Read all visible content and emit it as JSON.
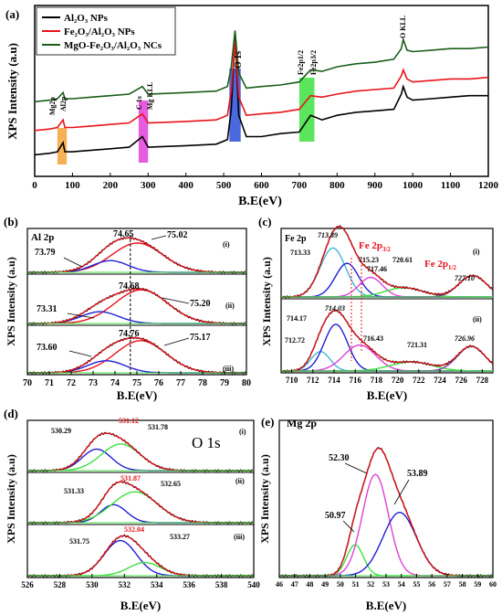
{
  "chart_data": [
    {
      "id": "a",
      "type": "line",
      "panel_label": "(a)",
      "xlabel": "B.E(eV)",
      "ylabel": "XPS Intensity (a.u)",
      "xlim": [
        0,
        1200
      ],
      "xticks": [
        0,
        100,
        200,
        300,
        400,
        500,
        600,
        700,
        800,
        900,
        1000,
        1100,
        1200
      ],
      "grid": false,
      "legend_position": "top-left",
      "legend_entries": [
        {
          "label": "Al₂O₃ NPs",
          "color": "#000000"
        },
        {
          "label": "Fe₂O₃/Al₂O₃ NPs",
          "color": "#e8131b"
        },
        {
          "label": "MgO-Fe₂O₃/Al₂O₃ NCs",
          "color": "#1a5e1a"
        }
      ],
      "series": [
        {
          "name": "Al₂O₃ NPs",
          "color": "#000000",
          "x": [
            0,
            40,
            60,
            75,
            80,
            100,
            150,
            200,
            250,
            285,
            300,
            400,
            480,
            510,
            520,
            530,
            540,
            560,
            600,
            650,
            700,
            730,
            760,
            800,
            850,
            900,
            950,
            970,
            975,
            985,
            1000,
            1050,
            1100,
            1150,
            1200
          ],
          "y": [
            0.1,
            0.11,
            0.12,
            0.18,
            0.12,
            0.12,
            0.13,
            0.14,
            0.15,
            0.22,
            0.15,
            0.16,
            0.17,
            0.2,
            0.4,
            0.88,
            0.36,
            0.22,
            0.22,
            0.24,
            0.25,
            0.36,
            0.33,
            0.36,
            0.38,
            0.39,
            0.4,
            0.5,
            0.55,
            0.48,
            0.46,
            0.47,
            0.48,
            0.49,
            0.49
          ]
        },
        {
          "name": "Fe₂O₃/Al₂O₃ NPs",
          "color": "#e8131b",
          "x": [
            0,
            40,
            60,
            75,
            80,
            100,
            150,
            200,
            250,
            285,
            300,
            400,
            480,
            510,
            520,
            530,
            540,
            560,
            600,
            650,
            700,
            730,
            760,
            800,
            850,
            900,
            950,
            970,
            975,
            985,
            1000,
            1050,
            1100,
            1150,
            1200
          ],
          "y": [
            0.26,
            0.27,
            0.28,
            0.33,
            0.28,
            0.28,
            0.29,
            0.3,
            0.31,
            0.37,
            0.31,
            0.32,
            0.33,
            0.36,
            0.52,
            0.85,
            0.48,
            0.36,
            0.37,
            0.38,
            0.4,
            0.49,
            0.48,
            0.5,
            0.52,
            0.53,
            0.54,
            0.62,
            0.66,
            0.6,
            0.58,
            0.59,
            0.6,
            0.6,
            0.61
          ]
        },
        {
          "name": "MgO-Fe₂O₃/Al₂O₃ NCs",
          "color": "#1a5e1a",
          "x": [
            0,
            40,
            60,
            75,
            80,
            100,
            150,
            200,
            250,
            285,
            300,
            400,
            480,
            510,
            520,
            530,
            540,
            560,
            600,
            650,
            700,
            730,
            760,
            800,
            850,
            900,
            950,
            970,
            975,
            985,
            1000,
            1050,
            1100,
            1150,
            1200
          ],
          "y": [
            0.45,
            0.46,
            0.47,
            0.51,
            0.47,
            0.47,
            0.48,
            0.49,
            0.5,
            0.55,
            0.5,
            0.51,
            0.52,
            0.55,
            0.68,
            0.92,
            0.64,
            0.54,
            0.55,
            0.56,
            0.58,
            0.66,
            0.65,
            0.68,
            0.7,
            0.71,
            0.73,
            0.8,
            0.86,
            0.79,
            0.78,
            0.79,
            0.8,
            0.8,
            0.81
          ]
        }
      ],
      "annotations": [
        {
          "text": "Mg2p",
          "x": 55,
          "color": "#000000"
        },
        {
          "text": "Al2p",
          "x": 75,
          "color": "#000000"
        },
        {
          "text": "C 1s",
          "x": 285,
          "color": "#000000"
        },
        {
          "text": "Mg KLL",
          "x": 305,
          "color": "#000000"
        },
        {
          "text": "O 1s",
          "x": 531,
          "color": "#000000"
        },
        {
          "text": "Fe2p1/2",
          "x": 712,
          "color": "#000000"
        },
        {
          "text": "Fe2p3/2",
          "x": 727,
          "color": "#000000"
        },
        {
          "text": "O KLL",
          "x": 975,
          "color": "#000000"
        }
      ],
      "highlight_bands": [
        {
          "x0": 60,
          "x1": 85,
          "color": "#f4a33a"
        },
        {
          "x0": 275,
          "x1": 300,
          "color": "#e040d8"
        },
        {
          "x0": 515,
          "x1": 545,
          "color": "#2a4fd8"
        },
        {
          "x0": 700,
          "x1": 740,
          "color": "#3ee03e"
        }
      ]
    },
    {
      "id": "b",
      "type": "line",
      "panel_label": "(b)",
      "title": "Al 2p",
      "xlabel": "B.E(eV)",
      "ylabel": "XPS Intensity (a.u)",
      "xlim": [
        70,
        80
      ],
      "xticks": [
        70,
        71,
        72,
        73,
        74,
        75,
        76,
        77,
        78,
        79,
        80
      ],
      "dashed_line_x": 74.7,
      "subpanels": [
        {
          "label": "(i)",
          "envelope_peak": 74.65,
          "components": [
            {
              "center": 75.02,
              "sigma": 1.15,
              "amp": 0.8,
              "color": "#e8131b"
            },
            {
              "center": 73.79,
              "sigma": 0.8,
              "amp": 0.32,
              "color": "#1f1fd6"
            }
          ],
          "peak_labels": [
            "74.65",
            "75.02",
            "73.79"
          ]
        },
        {
          "label": "(ii)",
          "envelope_peak": 74.68,
          "components": [
            {
              "center": 75.2,
              "sigma": 1.2,
              "amp": 0.8,
              "color": "#e8131b"
            },
            {
              "center": 73.31,
              "sigma": 0.85,
              "amp": 0.28,
              "color": "#1f1fd6"
            }
          ],
          "peak_labels": [
            "74.68",
            "75.20",
            "73.31"
          ]
        },
        {
          "label": "(iii)",
          "envelope_peak": 74.76,
          "components": [
            {
              "center": 75.17,
              "sigma": 1.15,
              "amp": 0.8,
              "color": "#e8131b"
            },
            {
              "center": 73.6,
              "sigma": 0.85,
              "amp": 0.3,
              "color": "#1f1fd6"
            }
          ],
          "peak_labels": [
            "74.76",
            "75.17",
            "73.60"
          ]
        }
      ]
    },
    {
      "id": "c",
      "type": "line",
      "panel_label": "(c)",
      "title": "Fe 2p",
      "xlabel": "B.E(eV)",
      "ylabel": "XPS Intensity (a.u)",
      "xlim": [
        709,
        729
      ],
      "xticks": [
        710,
        712,
        714,
        716,
        718,
        720,
        722,
        724,
        726,
        728
      ],
      "red_labels": [
        "Fe 2p",
        "3/2",
        "Fe 2p",
        "1/2"
      ],
      "subpanels": [
        {
          "label": "(i)",
          "components": [
            {
              "center": 713.89,
              "sigma": 1.2,
              "amp": 0.8,
              "color": "#3fb8d8"
            },
            {
              "center": 715.23,
              "sigma": 1.1,
              "amp": 0.55,
              "color": "#1f1fd6"
            },
            {
              "center": 717.46,
              "sigma": 1.1,
              "amp": 0.32,
              "color": "#e040d8"
            },
            {
              "center": 720.61,
              "sigma": 1.8,
              "amp": 0.15,
              "color": "#3ee03e"
            },
            {
              "center": 727.1,
              "sigma": 1.3,
              "amp": 0.35,
              "color": "#7a4aa8"
            }
          ],
          "peak_labels": [
            "713.33",
            "713.89",
            "715.23",
            "717.46",
            "720.61",
            "727.10"
          ]
        },
        {
          "label": "(ii)",
          "components": [
            {
              "center": 712.72,
              "sigma": 0.9,
              "amp": 0.3,
              "color": "#3fb8d8"
            },
            {
              "center": 714.17,
              "sigma": 1.1,
              "amp": 0.72,
              "color": "#1f1fd6"
            },
            {
              "center": 716.43,
              "sigma": 1.5,
              "amp": 0.4,
              "color": "#e040d8"
            },
            {
              "center": 721.31,
              "sigma": 2.0,
              "amp": 0.14,
              "color": "#3ee03e"
            },
            {
              "center": 726.96,
              "sigma": 1.3,
              "amp": 0.38,
              "color": "#7a4aa8"
            }
          ],
          "peak_labels": [
            "714.17",
            "714.03",
            "712.72",
            "716.43",
            "721.31",
            "726.96"
          ]
        }
      ]
    },
    {
      "id": "d",
      "type": "line",
      "panel_label": "(d)",
      "title": "O 1s",
      "xlabel": "B.E(eV)",
      "ylabel": "XPS Intensity (a.u)",
      "xlim": [
        526,
        540
      ],
      "xticks": [
        526,
        528,
        530,
        532,
        534,
        536,
        538,
        540
      ],
      "subpanels": [
        {
          "label": "(i)",
          "components": [
            {
              "center": 530.29,
              "sigma": 0.9,
              "amp": 0.5,
              "color": "#1f1fd6"
            },
            {
              "center": 531.78,
              "sigma": 1.2,
              "amp": 0.62,
              "color": "#3ee03e"
            }
          ],
          "peak_labels": [
            "530.29",
            "531.12",
            "531.78"
          ],
          "red_label": "531.12"
        },
        {
          "label": "(ii)",
          "components": [
            {
              "center": 531.33,
              "sigma": 0.8,
              "amp": 0.42,
              "color": "#1f1fd6"
            },
            {
              "center": 532.65,
              "sigma": 1.4,
              "amp": 0.72,
              "color": "#3ee03e"
            }
          ],
          "peak_labels": [
            "531.33",
            "531.87",
            "532.65"
          ],
          "red_label": "531.87"
        },
        {
          "label": "(iii)",
          "components": [
            {
              "center": 531.75,
              "sigma": 1.0,
              "amp": 0.8,
              "color": "#1f1fd6"
            },
            {
              "center": 533.27,
              "sigma": 1.0,
              "amp": 0.3,
              "color": "#3ee03e"
            }
          ],
          "peak_labels": [
            "531.75",
            "532.04",
            "533.27"
          ],
          "red_label": "532.04"
        }
      ]
    },
    {
      "id": "e",
      "type": "line",
      "panel_label": "(e)",
      "title": "Mg 2p",
      "xlabel": "B.E(eV)",
      "ylabel": "XPS Intensity (a.u)",
      "xlim": [
        46,
        60
      ],
      "xticks": [
        46,
        47,
        48,
        49,
        50,
        51,
        52,
        53,
        54,
        55,
        56,
        57,
        58,
        59,
        60
      ],
      "components": [
        {
          "center": 50.97,
          "sigma": 0.55,
          "amp": 0.22,
          "color": "#3ee03e"
        },
        {
          "center": 52.3,
          "sigma": 0.85,
          "amp": 0.72,
          "color": "#e040d8"
        },
        {
          "center": 53.89,
          "sigma": 1.1,
          "amp": 0.45,
          "color": "#1f1fd6"
        }
      ],
      "peak_labels": [
        "52.30",
        "53.89",
        "50.97"
      ]
    }
  ],
  "labels": {
    "a_xlabel": "B.E(eV)",
    "a_ylabel": "XPS Intensity (a.u)",
    "a_panel": "(a)",
    "legend1": "Al₂O₃ NPs",
    "legend2": "Fe₂O₃/Al₂O₃ NPs",
    "legend3": "MgO-Fe₂O₃/Al₂O₃ NCs",
    "ann_mg2p": "Mg2p",
    "ann_al2p": "Al2p",
    "ann_c1s": "C 1s",
    "ann_mgkll": "Mg KLL",
    "ann_o1s": "O 1s",
    "ann_fe12": "Fe2p1/2",
    "ann_fe32": "Fe2p3/2",
    "ann_okll": "O KLL",
    "b_panel": "(b)",
    "b_title": "Al 2p",
    "b_xlabel": "B.E(eV)",
    "b_ylabel": "XPS Intensity (a.u)",
    "b_i": "(i)",
    "b_ii": "(ii)",
    "b_iii": "(iii)",
    "b_i_p1": "74.65",
    "b_i_p2": "75.02",
    "b_i_p3": "73.79",
    "b_ii_p1": "74.68",
    "b_ii_p2": "75.20",
    "b_ii_p3": "73.31",
    "b_iii_p1": "74.76",
    "b_iii_p2": "75.17",
    "b_iii_p3": "73.60",
    "c_panel": "(c)",
    "c_title": "Fe 2p",
    "c_xlabel": "B.E(eV)",
    "c_ylabel": "XPS Intensity (a.u)",
    "c_i": "(i)",
    "c_ii": "(ii)",
    "c_fe32_main": "Fe 2p",
    "c_fe32_sub": "3/2",
    "c_fe12_main": "Fe 2p",
    "c_fe12_sub": "1/2",
    "c_i_p1": "713.33",
    "c_i_p2": "713.89",
    "c_i_p3": "715.23",
    "c_i_p4": "717.46",
    "c_i_p5": "720.61",
    "c_i_p6": "727.10",
    "c_ii_p1": "714.17",
    "c_ii_p2": "714.03",
    "c_ii_p3": "712.72",
    "c_ii_p4": "716.43",
    "c_ii_p5": "721.31",
    "c_ii_p6": "726.96",
    "d_panel": "(d)",
    "d_title": "O 1s",
    "d_xlabel": "B.E(eV)",
    "d_ylabel": "XPS Intensity (a.u)",
    "d_i": "(i)",
    "d_ii": "(ii)",
    "d_iii": "(iii)",
    "d_i_p1": "530.29",
    "d_i_p2": "531.12",
    "d_i_p3": "531.78",
    "d_ii_p1": "531.33",
    "d_ii_p2": "531.87",
    "d_ii_p3": "532.65",
    "d_iii_p1": "531.75",
    "d_iii_p2": "532.04",
    "d_iii_p3": "533.27",
    "e_panel": "(e)",
    "e_title": "Mg 2p",
    "e_xlabel": "B.E(eV)",
    "e_ylabel": "XPS Intensity (a.u)",
    "e_p1": "52.30",
    "e_p2": "53.89",
    "e_p3": "50.97"
  }
}
